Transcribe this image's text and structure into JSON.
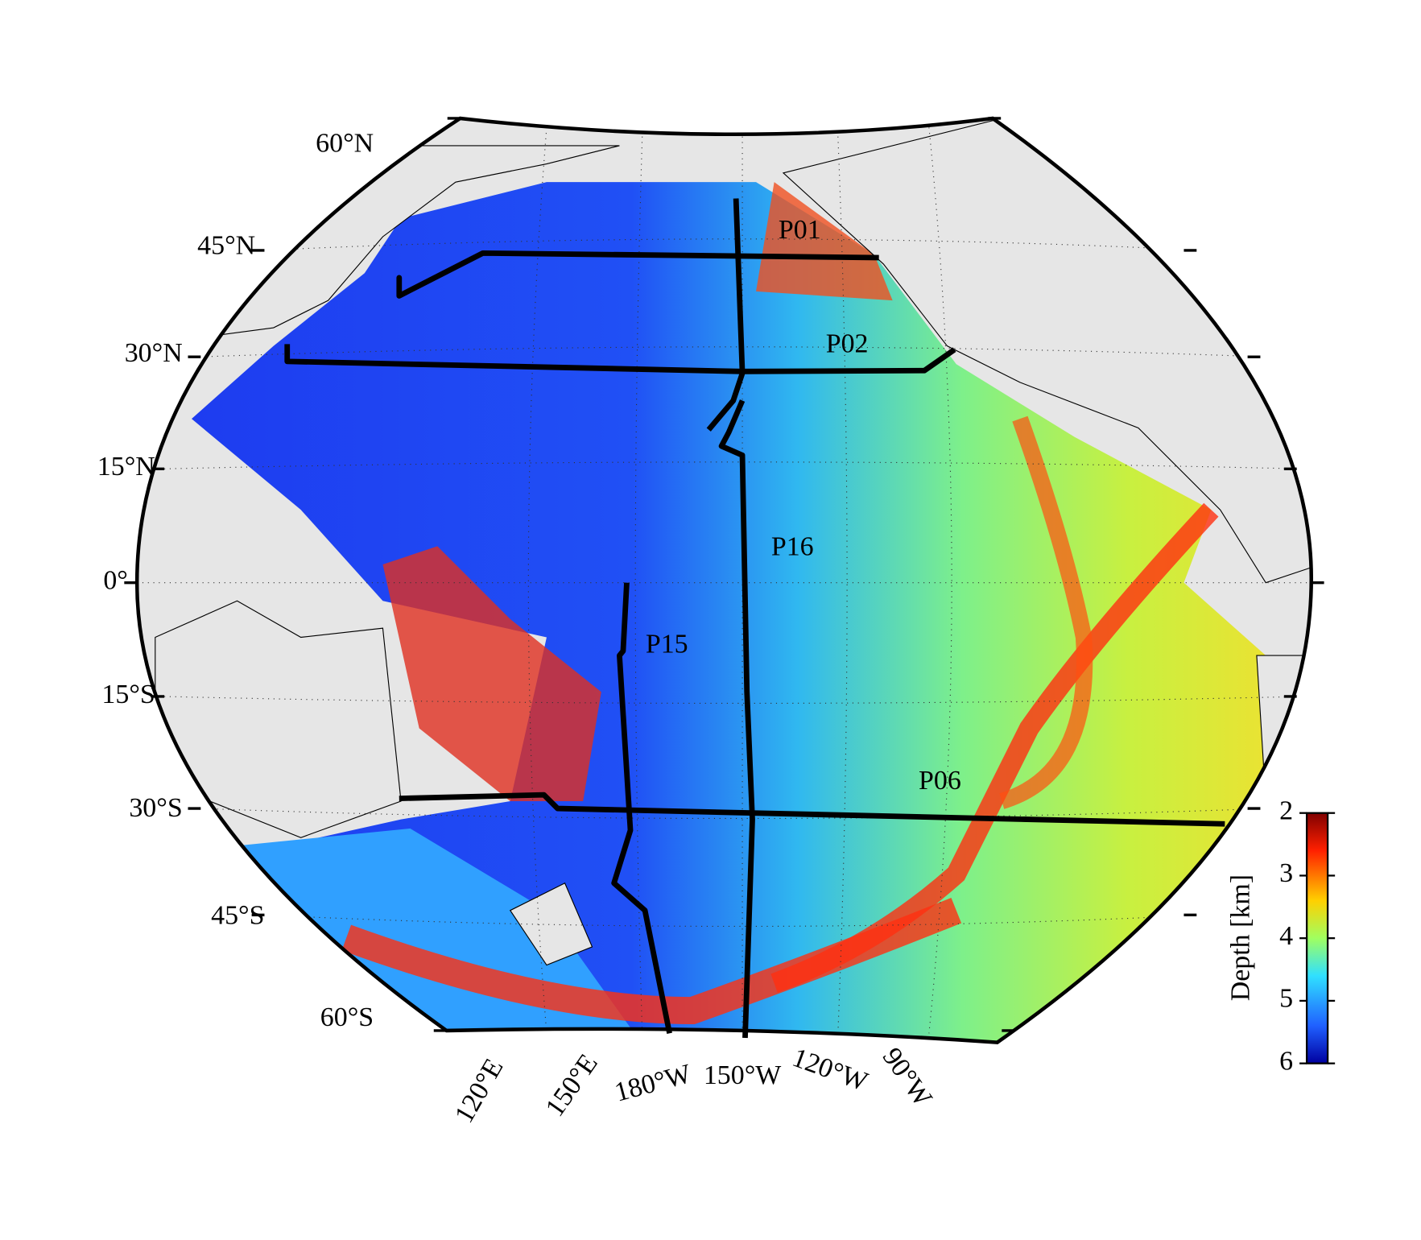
{
  "map": {
    "latitude_labels": [
      "60°N",
      "45°N",
      "30°N",
      "15°N",
      "0°",
      "15°S",
      "30°S",
      "45°S",
      "60°S"
    ],
    "longitude_labels": [
      "120°E",
      "150°E",
      "180°W",
      "150°W",
      "120°W",
      "90°W"
    ],
    "sections": [
      "P01",
      "P02",
      "P16",
      "P15",
      "P06"
    ]
  },
  "colorbar": {
    "title": "Depth [km]",
    "lim": [
      2,
      6
    ],
    "ticks": [
      2,
      3,
      4,
      5,
      6
    ]
  }
}
